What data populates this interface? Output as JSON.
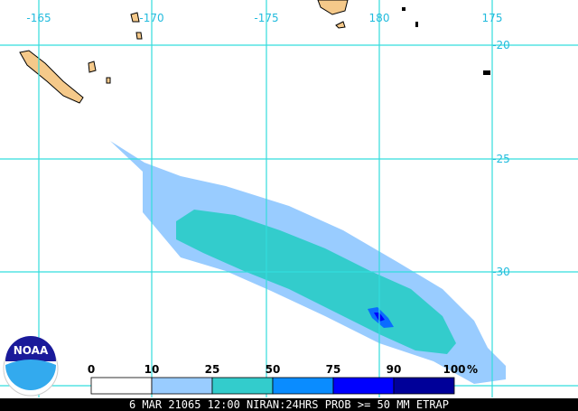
{
  "map": {
    "lon_labels": [
      "-165",
      "-170",
      "-175",
      "180",
      "175"
    ],
    "lat_labels": [
      "-20",
      "-25",
      "-30"
    ],
    "logo": "NOAA",
    "legend": {
      "labels": [
        "0",
        "10",
        "25",
        "50",
        "75",
        "90",
        "100"
      ],
      "unit": "%",
      "colors": [
        "#ffffff",
        "#99ccff",
        "#33cccc",
        "#0a8cff",
        "#0000ff",
        "#000099"
      ]
    },
    "footer": "6 MAR 21065 12:00 NIRAN:24HRS PROB >= 50 MM ETRAP"
  }
}
